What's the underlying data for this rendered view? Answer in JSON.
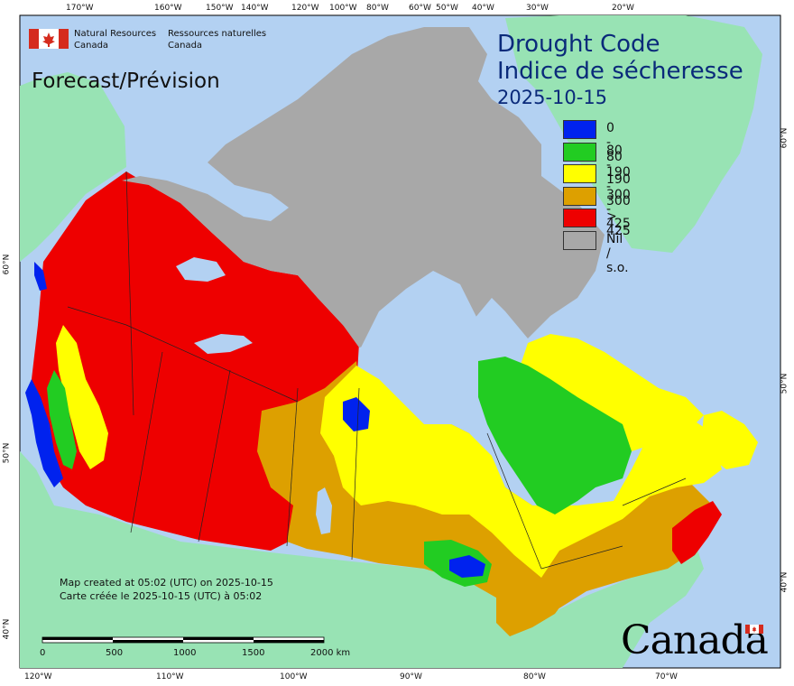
{
  "title": {
    "line1": "Drought Code",
    "line2": "Indice de sécheresse",
    "date": "2025-10-15",
    "subtitle": "Forecast/Prévision"
  },
  "agency": {
    "en_line1": "Natural Resources",
    "en_line2": "Canada",
    "fr_line1": "Ressources naturelles",
    "fr_line2": "Canada"
  },
  "legend": [
    {
      "label": "0 - 80",
      "color": "#0022ee"
    },
    {
      "label": "80 - 190",
      "color": "#22cc22"
    },
    {
      "label": "190 - 300",
      "color": "#ffff00"
    },
    {
      "label": "300 - 425",
      "color": "#dda000"
    },
    {
      "label": "> 425",
      "color": "#ee0000"
    },
    {
      "label": "Nil / s.o.",
      "color": "#a8a8a8"
    }
  ],
  "footer": {
    "created_en": "Map created at 05:02 (UTC) on 2025-10-15",
    "created_fr": "Carte créée le 2025-10-15 (UTC) à 05:02"
  },
  "scale_bar": {
    "labels": [
      "0",
      "500",
      "1000",
      "1500",
      "2000 km"
    ]
  },
  "wordmark": "Canada",
  "graticule": {
    "top": [
      "170°W",
      "160°W",
      "150°W",
      "140°W",
      "120°W",
      "100°W",
      "80°W",
      "60°W",
      "50°W",
      "40°W",
      "30°W",
      "20°W"
    ],
    "bottom": [
      "120°W",
      "110°W",
      "100°W",
      "90°W",
      "80°W",
      "70°W"
    ],
    "left": [
      "60°N",
      "50°N",
      "40°N"
    ],
    "right": [
      "60°N",
      "50°N",
      "40°N"
    ]
  },
  "colors": {
    "ocean": "#b3d1f2",
    "foreign_land": "#98e3b4",
    "nil": "#a8a8a8",
    "extreme": "#ee0000",
    "high": "#dda000",
    "moderate": "#ffff00",
    "low": "#22cc22",
    "verylow": "#0022ee"
  }
}
